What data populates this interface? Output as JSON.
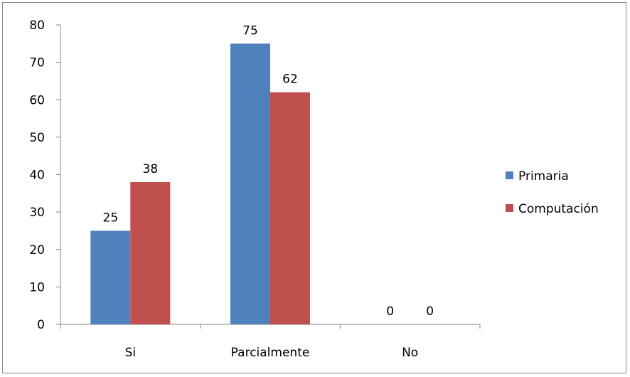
{
  "chart_data": {
    "type": "bar",
    "categories": [
      "Si",
      "Parcialmente",
      "No"
    ],
    "series": [
      {
        "name": "Primaria",
        "values": [
          25,
          75,
          0
        ],
        "color": "#4F81BD"
      },
      {
        "name": "Computación",
        "values": [
          38,
          62,
          0
        ],
        "color": "#C0504D"
      }
    ],
    "ylim": [
      0,
      80
    ],
    "yticks": [
      0,
      10,
      20,
      30,
      40,
      50,
      60,
      70,
      80
    ],
    "grid": false,
    "data_labels": true,
    "legend_position": "right"
  }
}
